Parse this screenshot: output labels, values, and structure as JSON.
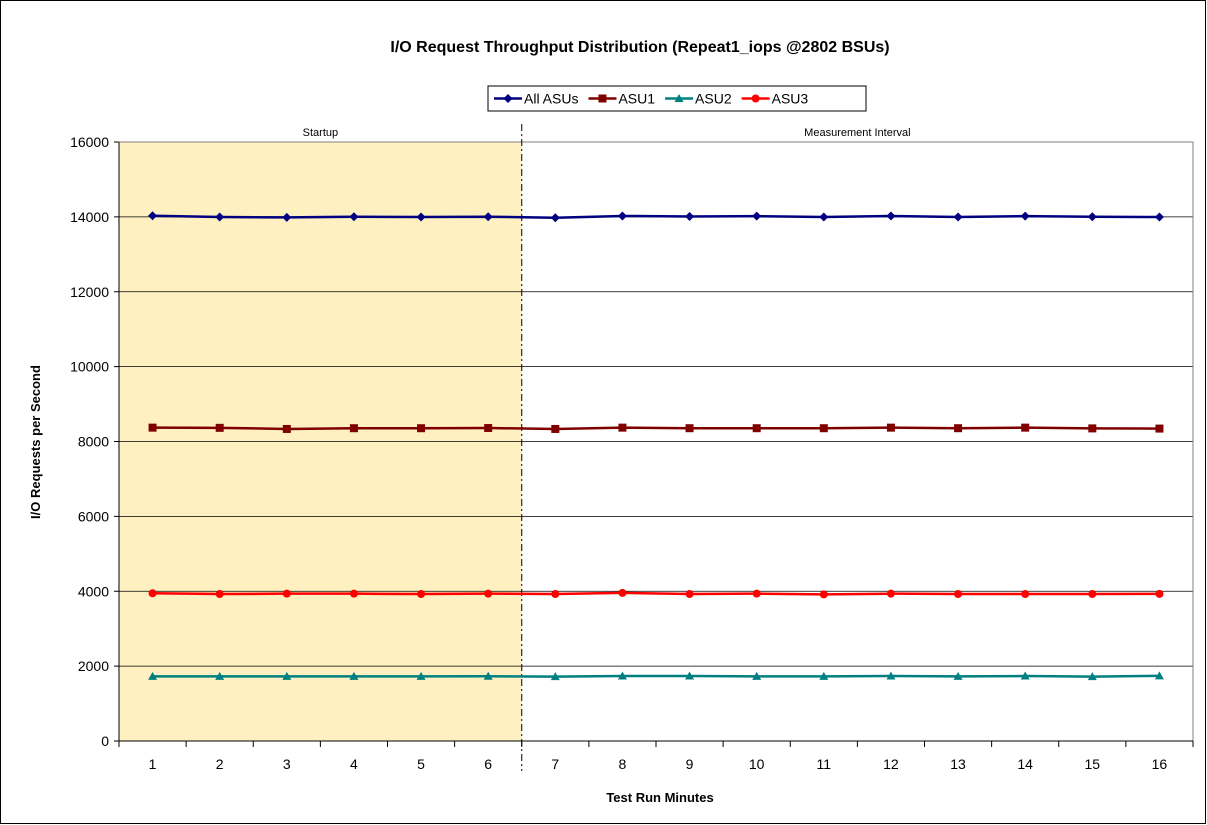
{
  "chart_data": {
    "type": "line",
    "title": "I/O Request Throughput Distribution (Repeat1_iops @2802 BSUs)",
    "xlabel": "Test Run Minutes",
    "ylabel": "I/O Requests per Second",
    "x": [
      1,
      2,
      3,
      4,
      5,
      6,
      7,
      8,
      9,
      10,
      11,
      12,
      13,
      14,
      15,
      16
    ],
    "ylim": [
      0,
      16000
    ],
    "yticks": [
      0,
      2000,
      4000,
      6000,
      8000,
      10000,
      12000,
      14000,
      16000
    ],
    "grid": true,
    "legend_position": "top-center",
    "regions": [
      {
        "label": "Startup",
        "x_from": 1,
        "x_to": 6,
        "shaded": true,
        "color": "#fef0c0"
      },
      {
        "label": "Measurement Interval",
        "x_from": 7,
        "x_to": 16,
        "shaded": false
      }
    ],
    "series": [
      {
        "name": "All ASUs",
        "color": "#000080",
        "marker": "diamond",
        "values": [
          14030,
          13995,
          13985,
          14005,
          13995,
          14005,
          13975,
          14025,
          14010,
          14020,
          13995,
          14025,
          13995,
          14020,
          14005,
          13995
        ]
      },
      {
        "name": "ASU1",
        "color": "#800000",
        "marker": "square",
        "values": [
          8370,
          8365,
          8335,
          8355,
          8355,
          8360,
          8335,
          8370,
          8355,
          8355,
          8355,
          8370,
          8355,
          8370,
          8350,
          8345
        ]
      },
      {
        "name": "ASU2",
        "color": "#008080",
        "marker": "triangle",
        "values": [
          1725,
          1725,
          1725,
          1725,
          1725,
          1730,
          1720,
          1735,
          1735,
          1725,
          1725,
          1735,
          1725,
          1735,
          1720,
          1740
        ]
      },
      {
        "name": "ASU3",
        "color": "#ff0000",
        "marker": "circle",
        "values": [
          3945,
          3925,
          3935,
          3935,
          3925,
          3935,
          3925,
          3955,
          3925,
          3935,
          3915,
          3935,
          3925,
          3925,
          3925,
          3930
        ]
      }
    ]
  }
}
